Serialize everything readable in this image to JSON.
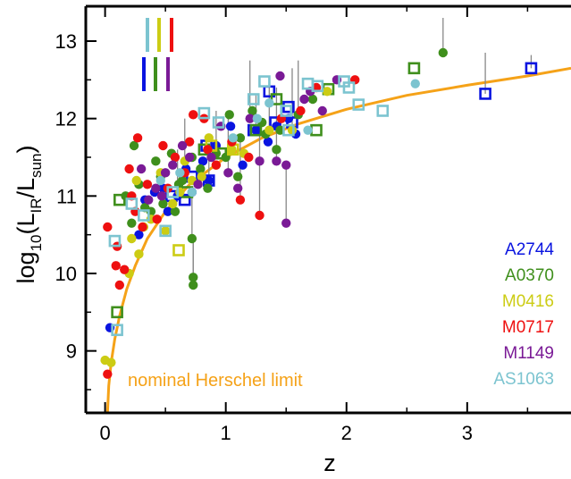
{
  "chart_data": {
    "type": "scatter",
    "title": "",
    "xlabel": "z",
    "ylabel": {
      "prefix": "log",
      "base": "10",
      "open": "(L",
      "num_sub": "IR",
      "slash": "/L",
      "den_sub": "sun",
      "close": ")"
    },
    "xlim": [
      -0.16,
      3.86
    ],
    "ylim": [
      8.2,
      13.45
    ],
    "xticks": [
      0,
      1,
      2,
      3
    ],
    "yticks": [
      9,
      10,
      11,
      12,
      13
    ],
    "x_tick_labels": [
      "0",
      "1",
      "2",
      "3"
    ],
    "y_tick_labels": [
      "9",
      "10",
      "11",
      "12",
      "13"
    ],
    "grid": false,
    "legend_placement": "bottom-right",
    "annotation": "nominal Herschel limit",
    "colors": {
      "A2744": "#0a14e0",
      "A0370": "#3f8f1c",
      "M0416": "#cccc14",
      "M0717": "#ee1010",
      "M1149": "#7a1a96",
      "AS1063": "#7cc4d0",
      "limit": "#f5a218",
      "errorbar": "#888888"
    },
    "series": [
      {
        "name": "A2744",
        "marker": "circle",
        "points": [
          [
            0.04,
            9.3
          ],
          [
            0.28,
            10.5
          ],
          [
            0.33,
            10.95
          ],
          [
            0.41,
            11.05
          ],
          [
            0.48,
            11.1
          ],
          [
            0.52,
            10.8
          ],
          [
            0.6,
            11.0
          ],
          [
            0.67,
            11.35
          ],
          [
            0.72,
            11.05
          ],
          [
            0.81,
            11.45
          ],
          [
            0.86,
            11.2
          ],
          [
            0.92,
            11.65
          ],
          [
            1.04,
            11.9
          ],
          [
            1.14,
            11.4
          ],
          [
            1.25,
            11.85
          ],
          [
            1.35,
            11.7
          ],
          [
            1.42,
            11.9
          ],
          [
            1.52,
            12.0
          ],
          [
            1.58,
            11.8
          ]
        ]
      },
      {
        "name": "A2744",
        "marker": "square",
        "points": [
          [
            0.55,
            11.0
          ],
          [
            0.66,
            10.95
          ],
          [
            0.72,
            11.25
          ],
          [
            0.84,
            11.65
          ],
          [
            0.86,
            11.2
          ],
          [
            1.23,
            11.85
          ],
          [
            1.36,
            12.35
          ],
          [
            1.41,
            11.95
          ],
          [
            1.52,
            12.15
          ],
          [
            1.55,
            11.95
          ],
          [
            3.15,
            12.32
          ],
          [
            3.53,
            12.65
          ]
        ]
      },
      {
        "name": "A0370",
        "marker": "circle",
        "points": [
          [
            0.24,
            11.65
          ],
          [
            0.28,
            11.15
          ],
          [
            0.33,
            10.85
          ],
          [
            0.42,
            11.45
          ],
          [
            0.48,
            10.9
          ],
          [
            0.61,
            11.15
          ],
          [
            0.72,
            10.45
          ],
          [
            0.73,
            9.95
          ],
          [
            0.73,
            9.85
          ],
          [
            0.79,
            11.35
          ],
          [
            0.92,
            11.55
          ],
          [
            1.03,
            12.05
          ],
          [
            1.12,
            11.75
          ],
          [
            1.22,
            12.1
          ],
          [
            1.33,
            11.8
          ],
          [
            1.45,
            11.85
          ],
          [
            1.6,
            12.05
          ],
          [
            1.72,
            12.25
          ],
          [
            2.8,
            12.85
          ]
        ]
      },
      {
        "name": "A0370",
        "marker": "square",
        "points": [
          [
            0.1,
            9.5
          ],
          [
            0.12,
            10.95
          ],
          [
            0.68,
            11.05
          ],
          [
            0.82,
            11.6
          ],
          [
            0.96,
            11.55
          ],
          [
            1.25,
            11.85
          ],
          [
            1.42,
            12.25
          ],
          [
            1.75,
            11.85
          ],
          [
            1.85,
            12.38
          ],
          [
            2.56,
            12.65
          ]
        ]
      },
      {
        "name": "A0370",
        "marker": "circle",
        "points": [
          [
            0.17,
            11.0
          ],
          [
            0.22,
            10.65
          ],
          [
            0.38,
            10.8
          ],
          [
            0.46,
            11.25
          ],
          [
            0.55,
            11.55
          ],
          [
            0.58,
            10.8
          ],
          [
            0.64,
            11.2
          ],
          [
            0.72,
            11.5
          ],
          [
            0.85,
            11.1
          ],
          [
            1.0,
            11.5
          ],
          [
            1.1,
            11.25
          ],
          [
            1.3,
            11.95
          ],
          [
            1.42,
            11.6
          ]
        ]
      },
      {
        "name": "M0416",
        "marker": "circle",
        "points": [
          [
            0.0,
            8.88
          ],
          [
            0.05,
            8.85
          ],
          [
            0.2,
            10.0
          ],
          [
            0.22,
            10.45
          ],
          [
            0.26,
            11.2
          ],
          [
            0.28,
            10.25
          ],
          [
            0.32,
            10.6
          ],
          [
            0.38,
            10.7
          ],
          [
            0.46,
            11.3
          ],
          [
            0.5,
            10.55
          ],
          [
            0.56,
            10.9
          ],
          [
            0.62,
            11.05
          ],
          [
            0.66,
            11.45
          ],
          [
            0.72,
            11.2
          ],
          [
            0.8,
            11.25
          ],
          [
            0.86,
            11.75
          ],
          [
            0.92,
            11.4
          ],
          [
            1.05,
            11.6
          ],
          [
            1.15,
            11.55
          ],
          [
            1.36,
            11.85
          ],
          [
            1.55,
            11.85
          ],
          [
            1.84,
            12.35
          ]
        ]
      },
      {
        "name": "M0416",
        "marker": "square",
        "points": [
          [
            0.61,
            10.3
          ],
          [
            0.88,
            11.65
          ],
          [
            1.06,
            11.6
          ]
        ]
      },
      {
        "name": "M0717",
        "marker": "circle",
        "points": [
          [
            0.02,
            8.7
          ],
          [
            0.02,
            10.6
          ],
          [
            0.09,
            10.1
          ],
          [
            0.1,
            10.35
          ],
          [
            0.12,
            9.85
          ],
          [
            0.16,
            10.05
          ],
          [
            0.2,
            11.35
          ],
          [
            0.22,
            11.0
          ],
          [
            0.25,
            10.8
          ],
          [
            0.27,
            11.75
          ],
          [
            0.31,
            10.6
          ],
          [
            0.35,
            11.15
          ],
          [
            0.43,
            10.7
          ],
          [
            0.48,
            11.65
          ],
          [
            0.52,
            11.1
          ],
          [
            0.58,
            11.5
          ],
          [
            0.66,
            11.3
          ],
          [
            0.7,
            11.7
          ],
          [
            0.73,
            12.05
          ],
          [
            0.82,
            12.0
          ],
          [
            0.85,
            11.6
          ],
          [
            0.92,
            11.4
          ],
          [
            1.05,
            11.7
          ],
          [
            1.12,
            10.95
          ],
          [
            1.19,
            11.5
          ],
          [
            1.28,
            10.75
          ],
          [
            1.46,
            12.0
          ],
          [
            1.62,
            12.1
          ],
          [
            1.75,
            12.4
          ],
          [
            2.07,
            12.5
          ]
        ]
      },
      {
        "name": "M1149",
        "marker": "circle",
        "points": [
          [
            0.3,
            11.35
          ],
          [
            0.36,
            10.95
          ],
          [
            0.42,
            11.1
          ],
          [
            0.47,
            11.0
          ],
          [
            0.5,
            11.3
          ],
          [
            0.56,
            11.4
          ],
          [
            0.64,
            11.65
          ],
          [
            0.7,
            11.5
          ],
          [
            0.77,
            11.15
          ],
          [
            0.88,
            11.5
          ],
          [
            0.96,
            11.9
          ],
          [
            1.02,
            11.3
          ],
          [
            1.1,
            11.1
          ],
          [
            1.2,
            12.0
          ],
          [
            1.28,
            11.45
          ],
          [
            1.42,
            11.45
          ],
          [
            1.45,
            12.55
          ],
          [
            1.5,
            10.65
          ],
          [
            1.5,
            11.4
          ],
          [
            1.65,
            12.25
          ],
          [
            1.7,
            12.35
          ],
          [
            1.8,
            12.1
          ],
          [
            1.92,
            12.5
          ]
        ]
      },
      {
        "name": "AS1063",
        "marker": "circle",
        "points": [
          [
            0.46,
            11.2
          ],
          [
            0.62,
            11.3
          ],
          [
            0.72,
            11.05
          ],
          [
            1.06,
            11.75
          ],
          [
            1.26,
            12.0
          ],
          [
            1.36,
            12.2
          ],
          [
            1.68,
            11.85
          ],
          [
            2.57,
            12.45
          ]
        ]
      },
      {
        "name": "AS1063",
        "marker": "square",
        "points": [
          [
            0.08,
            10.42
          ],
          [
            0.1,
            9.27
          ],
          [
            0.22,
            10.9
          ],
          [
            0.32,
            10.75
          ],
          [
            0.5,
            10.55
          ],
          [
            0.56,
            11.05
          ],
          [
            0.82,
            12.07
          ],
          [
            0.94,
            11.95
          ],
          [
            1.23,
            12.25
          ],
          [
            1.32,
            12.48
          ],
          [
            1.5,
            12.1
          ],
          [
            1.52,
            11.85
          ],
          [
            1.68,
            12.45
          ],
          [
            1.76,
            12.42
          ],
          [
            1.98,
            12.48
          ],
          [
            2.02,
            12.4
          ],
          [
            2.1,
            12.18
          ],
          [
            2.3,
            12.1
          ]
        ]
      }
    ],
    "error_bars": [
      [
        0.72,
        10.45,
        11.0
      ],
      [
        0.73,
        9.95,
        10.5
      ],
      [
        0.73,
        9.85,
        10.4
      ],
      [
        1.12,
        10.95,
        11.75
      ],
      [
        1.28,
        10.75,
        11.95
      ],
      [
        1.5,
        10.65,
        11.4
      ],
      [
        1.42,
        11.45,
        12.4
      ],
      [
        1.2,
        12.0,
        12.75
      ],
      [
        1.02,
        11.3,
        12.0
      ],
      [
        0.6,
        11.05,
        11.6
      ],
      [
        0.66,
        11.45,
        12.0
      ],
      [
        1.36,
        11.85,
        12.5
      ],
      [
        1.55,
        11.85,
        12.65
      ],
      [
        1.6,
        12.05,
        12.75
      ],
      [
        2.8,
        12.85,
        13.3
      ],
      [
        3.15,
        12.32,
        12.85
      ],
      [
        3.53,
        12.65,
        12.82
      ],
      [
        0.86,
        11.2,
        11.6
      ],
      [
        0.92,
        11.65,
        12.1
      ],
      [
        1.25,
        11.85,
        12.3
      ]
    ],
    "limit_curve": [
      [
        0.02,
        8.2
      ],
      [
        0.03,
        8.55
      ],
      [
        0.05,
        8.85
      ],
      [
        0.08,
        9.15
      ],
      [
        0.12,
        9.45
      ],
      [
        0.18,
        9.8
      ],
      [
        0.25,
        10.1
      ],
      [
        0.35,
        10.45
      ],
      [
        0.5,
        10.8
      ],
      [
        0.7,
        11.15
      ],
      [
        1.0,
        11.5
      ],
      [
        1.3,
        11.75
      ],
      [
        1.6,
        11.93
      ],
      [
        2.0,
        12.12
      ],
      [
        2.5,
        12.3
      ],
      [
        3.0,
        12.43
      ],
      [
        3.5,
        12.55
      ],
      [
        3.86,
        12.65
      ]
    ],
    "legend": [
      "A2744",
      "A0370",
      "M0416",
      "M0717",
      "M1149",
      "AS1063"
    ],
    "bar_key": {
      "top": [
        "AS1063",
        "M0416",
        "M0717"
      ],
      "bottom": [
        "A2744",
        "A0370",
        "M1149"
      ]
    }
  }
}
